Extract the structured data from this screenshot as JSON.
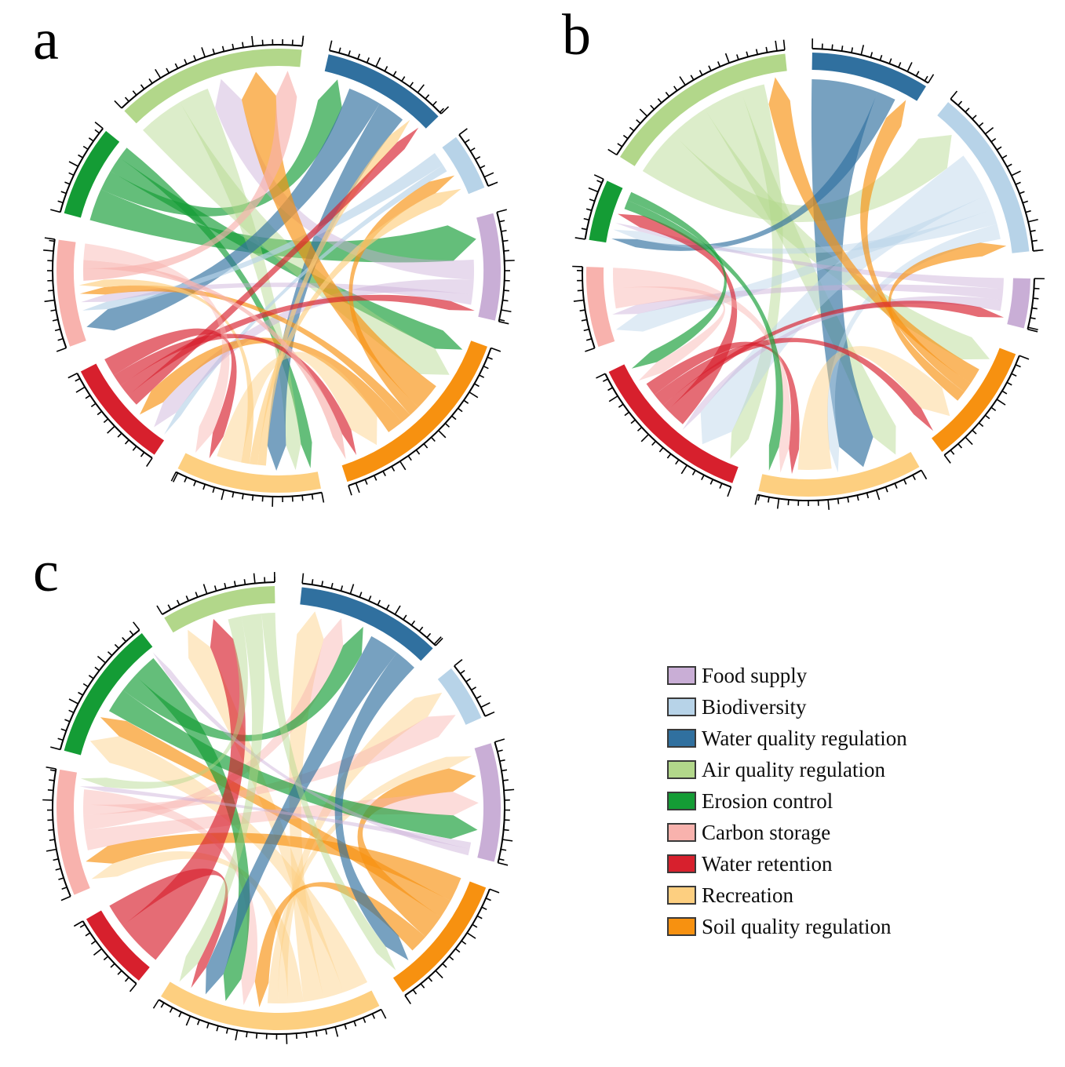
{
  "panels": [
    {
      "label": "a"
    },
    {
      "label": "b"
    },
    {
      "label": "c"
    }
  ],
  "legend": {
    "items": [
      {
        "label": "Food supply",
        "color": "#c9aed6"
      },
      {
        "label": "Biodiversity",
        "color": "#b7d3e8"
      },
      {
        "label": "Water quality regulation",
        "color": "#30709f"
      },
      {
        "label": "Air quality regulation",
        "color": "#b2d78a"
      },
      {
        "label": "Erosion control",
        "color": "#149c35"
      },
      {
        "label": "Carbon storage",
        "color": "#f8b2ad"
      },
      {
        "label": "Water retention",
        "color": "#d7202d"
      },
      {
        "label": "Recreation",
        "color": "#fdcf80"
      },
      {
        "label": "Soil quality regulation",
        "color": "#f79110"
      }
    ]
  },
  "category_colors": {
    "Food supply": "#c9aed6",
    "Biodiversity": "#b7d3e8",
    "Water quality regulation": "#30709f",
    "Air quality regulation": "#b2d78a",
    "Erosion control": "#149c35",
    "Carbon storage": "#f8b2ad",
    "Water retention": "#d7202d",
    "Recreation": "#fdcf80",
    "Soil quality regulation": "#f79110"
  },
  "chart_data": [
    {
      "panel": "a",
      "type": "chord",
      "sectors": [
        {
          "name": "Air quality regulation",
          "start": -44,
          "end": 6
        },
        {
          "name": "Water quality regulation",
          "start": 13,
          "end": 46
        },
        {
          "name": "Biodiversity",
          "start": 53,
          "end": 68
        },
        {
          "name": "Food supply",
          "start": 75,
          "end": 103
        },
        {
          "name": "Soil quality regulation",
          "start": 110,
          "end": 162
        },
        {
          "name": "Recreation",
          "start": 169,
          "end": 207
        },
        {
          "name": "Water retention",
          "start": 214,
          "end": 243
        },
        {
          "name": "Carbon storage",
          "start": 250,
          "end": 278
        },
        {
          "name": "Erosion control",
          "start": 285,
          "end": 309
        }
      ],
      "links": [
        {
          "source": "Erosion control",
          "target": "Food supply",
          "value": 8,
          "pale": false
        },
        {
          "source": "Erosion control",
          "target": "Water quality regulation",
          "value": 5,
          "pale": false
        },
        {
          "source": "Erosion control",
          "target": "Soil quality regulation",
          "value": 4,
          "pale": false
        },
        {
          "source": "Erosion control",
          "target": "Recreation",
          "value": 3,
          "pale": false
        },
        {
          "source": "Air quality regulation",
          "target": "Soil quality regulation",
          "value": 6,
          "pale": true
        },
        {
          "source": "Air quality regulation",
          "target": "Recreation",
          "value": 4,
          "pale": true
        },
        {
          "source": "Water quality regulation",
          "target": "Carbon storage",
          "value": 6,
          "pale": false
        },
        {
          "source": "Water quality regulation",
          "target": "Recreation",
          "value": 5,
          "pale": false
        },
        {
          "source": "Biodiversity",
          "target": "Carbon storage",
          "value": 2,
          "pale": false
        },
        {
          "source": "Biodiversity",
          "target": "Water retention",
          "value": 1,
          "pale": false
        },
        {
          "source": "Food supply",
          "target": "Air quality regulation",
          "value": 4,
          "pale": true
        },
        {
          "source": "Food supply",
          "target": "Water retention",
          "value": 3,
          "pale": true
        },
        {
          "source": "Food supply",
          "target": "Carbon storage",
          "value": 2,
          "pale": true
        },
        {
          "source": "Soil quality regulation",
          "target": "Air quality regulation",
          "value": 5,
          "pale": false
        },
        {
          "source": "Soil quality regulation",
          "target": "Biodiversity",
          "value": 2,
          "pale": false
        },
        {
          "source": "Soil quality regulation",
          "target": "Carbon storage",
          "value": 2,
          "pale": false
        },
        {
          "source": "Soil quality regulation",
          "target": "Water retention",
          "value": 3,
          "pale": false
        },
        {
          "source": "Recreation",
          "target": "Water quality regulation",
          "value": 2,
          "pale": false
        },
        {
          "source": "Recreation",
          "target": "Biodiversity",
          "value": 2,
          "pale": false
        },
        {
          "source": "Recreation",
          "target": "Carbon storage",
          "value": 2,
          "pale": false
        },
        {
          "source": "Recreation",
          "target": "Soil quality regulation",
          "value": 6,
          "pale": true
        },
        {
          "source": "Water retention",
          "target": "Water quality regulation",
          "value": 2,
          "pale": false
        },
        {
          "source": "Water retention",
          "target": "Food supply",
          "value": 2,
          "pale": false
        },
        {
          "source": "Water retention",
          "target": "Soil quality regulation",
          "value": 2,
          "pale": false
        },
        {
          "source": "Water retention",
          "target": "Recreation",
          "value": 3,
          "pale": false
        },
        {
          "source": "Carbon storage",
          "target": "Air quality regulation",
          "value": 3,
          "pale": false
        },
        {
          "source": "Carbon storage",
          "target": "Soil quality regulation",
          "value": 2,
          "pale": false
        },
        {
          "source": "Carbon storage",
          "target": "Recreation",
          "value": 4,
          "pale": true
        }
      ]
    },
    {
      "panel": "b",
      "type": "chord",
      "sectors": [
        {
          "name": "Air quality regulation",
          "start": -58,
          "end": -6
        },
        {
          "name": "Water quality regulation",
          "start": 1,
          "end": 32
        },
        {
          "name": "Biodiversity",
          "start": 39,
          "end": 84
        },
        {
          "name": "Food supply",
          "start": 91,
          "end": 104
        },
        {
          "name": "Soil quality regulation",
          "start": 111,
          "end": 143
        },
        {
          "name": "Recreation",
          "start": 150,
          "end": 193
        },
        {
          "name": "Water retention",
          "start": 200,
          "end": 244
        },
        {
          "name": "Carbon storage",
          "start": 251,
          "end": 272
        },
        {
          "name": "Erosion control",
          "start": 279,
          "end": 295
        }
      ],
      "links": [
        {
          "source": "Air quality regulation",
          "target": "Biodiversity",
          "value": 6,
          "pale": true
        },
        {
          "source": "Air quality regulation",
          "target": "Soil quality regulation",
          "value": 5,
          "pale": true
        },
        {
          "source": "Air quality regulation",
          "target": "Recreation",
          "value": 5,
          "pale": true
        },
        {
          "source": "Air quality regulation",
          "target": "Water retention",
          "value": 3,
          "pale": true
        },
        {
          "source": "Water quality regulation",
          "target": "Recreation",
          "value": 7,
          "pale": false
        },
        {
          "source": "Water quality regulation",
          "target": "Erosion control",
          "value": 2,
          "pale": false
        },
        {
          "source": "Biodiversity",
          "target": "Water retention",
          "value": 6,
          "pale": true
        },
        {
          "source": "Biodiversity",
          "target": "Carbon storage",
          "value": 2,
          "pale": true
        },
        {
          "source": "Biodiversity",
          "target": "Erosion control",
          "value": 2,
          "pale": true
        },
        {
          "source": "Biodiversity",
          "target": "Recreation",
          "value": 2,
          "pale": true
        },
        {
          "source": "Food supply",
          "target": "Erosion control",
          "value": 1,
          "pale": true
        },
        {
          "source": "Food supply",
          "target": "Carbon storage",
          "value": 1,
          "pale": true
        },
        {
          "source": "Food supply",
          "target": "Water retention",
          "value": 1,
          "pale": true
        },
        {
          "source": "Soil quality regulation",
          "target": "Air quality regulation",
          "value": 3,
          "pale": false
        },
        {
          "source": "Soil quality regulation",
          "target": "Water quality regulation",
          "value": 2,
          "pale": false
        },
        {
          "source": "Soil quality regulation",
          "target": "Biodiversity",
          "value": 2,
          "pale": false
        },
        {
          "source": "Recreation",
          "target": "Soil quality regulation",
          "value": 6,
          "pale": true
        },
        {
          "source": "Water retention",
          "target": "Erosion control",
          "value": 3,
          "pale": false
        },
        {
          "source": "Water retention",
          "target": "Food supply",
          "value": 1,
          "pale": false
        },
        {
          "source": "Water retention",
          "target": "Soil quality regulation",
          "value": 2,
          "pale": false
        },
        {
          "source": "Water retention",
          "target": "Recreation",
          "value": 2,
          "pale": false
        },
        {
          "source": "Carbon storage",
          "target": "Water retention",
          "value": 2,
          "pale": true
        },
        {
          "source": "Carbon storage",
          "target": "Recreation",
          "value": 2,
          "pale": true
        },
        {
          "source": "Erosion control",
          "target": "Recreation",
          "value": 2,
          "pale": false
        },
        {
          "source": "Erosion control",
          "target": "Water retention",
          "value": 2,
          "pale": false
        }
      ]
    },
    {
      "panel": "c",
      "type": "chord",
      "sectors": [
        {
          "name": "Air quality regulation",
          "start": -31,
          "end": -1
        },
        {
          "name": "Water quality regulation",
          "start": 6,
          "end": 44
        },
        {
          "name": "Biodiversity",
          "start": 51,
          "end": 66
        },
        {
          "name": "Food supply",
          "start": 73,
          "end": 104
        },
        {
          "name": "Soil quality regulation",
          "start": 111,
          "end": 146
        },
        {
          "name": "Recreation",
          "start": 153,
          "end": 212
        },
        {
          "name": "Water retention",
          "start": 219,
          "end": 240
        },
        {
          "name": "Carbon storage",
          "start": 247,
          "end": 280
        },
        {
          "name": "Erosion control",
          "start": 285,
          "end": 322
        }
      ],
      "links": [
        {
          "source": "Recreation",
          "target": "Erosion control",
          "value": 5,
          "pale": true
        },
        {
          "source": "Recreation",
          "target": "Air quality regulation",
          "value": 4,
          "pale": true
        },
        {
          "source": "Recreation",
          "target": "Water quality regulation",
          "value": 4,
          "pale": true
        },
        {
          "source": "Recreation",
          "target": "Carbon storage",
          "value": 3,
          "pale": true
        },
        {
          "source": "Recreation",
          "target": "Biodiversity",
          "value": 2,
          "pale": true
        },
        {
          "source": "Recreation",
          "target": "Food supply",
          "value": 2,
          "pale": true
        },
        {
          "source": "Soil quality regulation",
          "target": "Carbon storage",
          "value": 4,
          "pale": false
        },
        {
          "source": "Soil quality regulation",
          "target": "Erosion control",
          "value": 3,
          "pale": false
        },
        {
          "source": "Soil quality regulation",
          "target": "Food supply",
          "value": 4,
          "pale": false
        },
        {
          "source": "Soil quality regulation",
          "target": "Recreation",
          "value": 3,
          "pale": false
        },
        {
          "source": "Carbon storage",
          "target": "Food supply",
          "value": 4,
          "pale": true
        },
        {
          "source": "Carbon storage",
          "target": "Water quality regulation",
          "value": 3,
          "pale": true
        },
        {
          "source": "Carbon storage",
          "target": "Biodiversity",
          "value": 2,
          "pale": true
        },
        {
          "source": "Carbon storage",
          "target": "Recreation",
          "value": 3,
          "pale": true
        },
        {
          "source": "Erosion control",
          "target": "Food supply",
          "value": 4,
          "pale": false
        },
        {
          "source": "Erosion control",
          "target": "Water quality regulation",
          "value": 3,
          "pale": false
        },
        {
          "source": "Erosion control",
          "target": "Recreation",
          "value": 4,
          "pale": false
        },
        {
          "source": "Water quality regulation",
          "target": "Recreation",
          "value": 4,
          "pale": false
        },
        {
          "source": "Water quality regulation",
          "target": "Soil quality regulation",
          "value": 3,
          "pale": false
        },
        {
          "source": "Water retention",
          "target": "Air quality regulation",
          "value": 4,
          "pale": false
        },
        {
          "source": "Water retention",
          "target": "Recreation",
          "value": 2,
          "pale": false
        },
        {
          "source": "Food supply",
          "target": "Carbon storage",
          "value": 1,
          "pale": true
        },
        {
          "source": "Food supply",
          "target": "Erosion control",
          "value": 1,
          "pale": true
        },
        {
          "source": "Air quality regulation",
          "target": "Carbon storage",
          "value": 2,
          "pale": true
        },
        {
          "source": "Air quality regulation",
          "target": "Recreation",
          "value": 3,
          "pale": true
        },
        {
          "source": "Air quality regulation",
          "target": "Soil quality regulation",
          "value": 2,
          "pale": true
        }
      ]
    }
  ]
}
